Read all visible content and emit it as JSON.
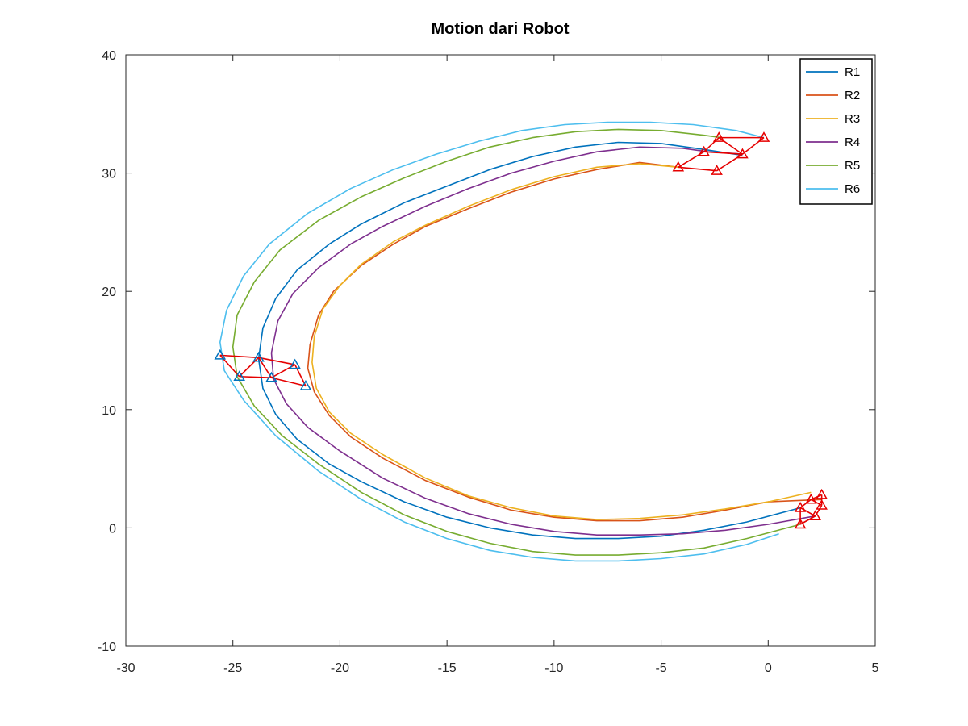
{
  "chart_data": {
    "type": "line",
    "title": "Motion dari Robot",
    "xlabel": "",
    "ylabel": "",
    "xlim": [
      -30,
      5
    ],
    "ylim": [
      -10,
      40
    ],
    "xticks": [
      -30,
      -25,
      -20,
      -15,
      -10,
      -5,
      0,
      5
    ],
    "yticks": [
      -10,
      0,
      10,
      20,
      30,
      40
    ],
    "grid": false,
    "legend_position": "top-right",
    "series": [
      {
        "name": "R1",
        "color": "#0072BD",
        "x": [
          1.5,
          -1,
          -3,
          -5,
          -7,
          -9,
          -11,
          -13,
          -15,
          -17,
          -19,
          -20.5,
          -22,
          -23,
          -23.6,
          -23.8,
          -23.6,
          -23,
          -22,
          -20.5,
          -19,
          -17,
          -15,
          -13,
          -11,
          -9,
          -7,
          -5,
          -3,
          -1.2
        ],
        "y": [
          1.7,
          0.5,
          -0.2,
          -0.7,
          -0.9,
          -0.9,
          -0.6,
          0,
          0.9,
          2.2,
          3.9,
          5.4,
          7.5,
          9.6,
          11.8,
          14.3,
          16.9,
          19.4,
          21.8,
          24,
          25.7,
          27.5,
          28.9,
          30.3,
          31.4,
          32.2,
          32.6,
          32.5,
          32,
          31.5
        ]
      },
      {
        "name": "R2",
        "color": "#D95319",
        "x": [
          2.5,
          0,
          -2,
          -4,
          -6,
          -8,
          -10,
          -12,
          -14,
          -16,
          -18,
          -19.5,
          -20.5,
          -21.2,
          -21.5,
          -21.4,
          -21,
          -20.3,
          -19,
          -17.5,
          -16,
          -14,
          -12,
          -10,
          -8,
          -6,
          -4.2
        ],
        "y": [
          2.4,
          2.2,
          1.5,
          0.9,
          0.6,
          0.6,
          0.9,
          1.5,
          2.6,
          4,
          5.9,
          7.7,
          9.5,
          11.5,
          13.5,
          15.5,
          18,
          20,
          22.2,
          24,
          25.5,
          27,
          28.4,
          29.5,
          30.3,
          30.9,
          30.5
        ]
      },
      {
        "name": "R3",
        "color": "#EDB120",
        "x": [
          2,
          0,
          -2,
          -4,
          -6,
          -8,
          -10,
          -12,
          -14,
          -16,
          -18,
          -19.5,
          -20.5,
          -21.1,
          -21.3,
          -21.2,
          -20.8,
          -20,
          -19,
          -17.5,
          -16,
          -14,
          -12,
          -10,
          -8,
          -6,
          -4.2
        ],
        "y": [
          3,
          2.2,
          1.6,
          1.1,
          0.8,
          0.7,
          1,
          1.7,
          2.7,
          4.2,
          6.2,
          8,
          9.8,
          11.8,
          14,
          16.2,
          18.5,
          20.5,
          22.3,
          24.2,
          25.6,
          27.2,
          28.6,
          29.7,
          30.5,
          30.8,
          30.5
        ]
      },
      {
        "name": "R4",
        "color": "#7E2F8E",
        "x": [
          2.2,
          0,
          -2,
          -4,
          -6,
          -8,
          -10,
          -12,
          -14,
          -16,
          -18,
          -20,
          -21.5,
          -22.5,
          -23.1,
          -23.2,
          -22.9,
          -22.2,
          -21,
          -19.5,
          -18,
          -16,
          -14,
          -12,
          -10,
          -8,
          -6,
          -4,
          -2.8,
          -1.2
        ],
        "y": [
          1,
          0.3,
          -0.2,
          -0.5,
          -0.6,
          -0.6,
          -0.3,
          0.3,
          1.2,
          2.5,
          4.2,
          6.5,
          8.5,
          10.5,
          12.6,
          14.8,
          17.5,
          19.8,
          22,
          24,
          25.5,
          27.2,
          28.7,
          30,
          31,
          31.8,
          32.2,
          32.1,
          31.8,
          31.6
        ]
      },
      {
        "name": "R5",
        "color": "#77AC30",
        "x": [
          1.5,
          -1,
          -3,
          -5,
          -7,
          -9,
          -11,
          -13,
          -15,
          -17,
          -19,
          -21,
          -22.7,
          -24,
          -24.8,
          -25,
          -24.8,
          -24,
          -22.8,
          -21,
          -19,
          -17,
          -15,
          -13,
          -11,
          -9,
          -7,
          -5,
          -3,
          -2.2
        ],
        "y": [
          0.3,
          -0.9,
          -1.7,
          -2.1,
          -2.3,
          -2.3,
          -2,
          -1.3,
          -0.3,
          1.1,
          3,
          5.4,
          7.8,
          10.3,
          12.8,
          15.3,
          18,
          20.8,
          23.5,
          26,
          28,
          29.6,
          31,
          32.2,
          33,
          33.5,
          33.7,
          33.6,
          33.2,
          33
        ]
      },
      {
        "name": "R6",
        "color": "#4DBEEE",
        "x": [
          0.5,
          -1,
          -3,
          -5,
          -7,
          -9,
          -11,
          -13,
          -15,
          -17,
          -19,
          -21,
          -23,
          -24.5,
          -25.4,
          -25.6,
          -25.3,
          -24.5,
          -23.3,
          -21.5,
          -19.5,
          -17.5,
          -15.5,
          -13.5,
          -11.5,
          -9.5,
          -7.5,
          -5.5,
          -3.5,
          -1.5,
          -0.2
        ],
        "y": [
          -0.5,
          -1.4,
          -2.2,
          -2.6,
          -2.8,
          -2.8,
          -2.5,
          -1.9,
          -0.9,
          0.5,
          2.4,
          4.8,
          7.8,
          10.8,
          13.3,
          15.7,
          18.4,
          21.3,
          24,
          26.6,
          28.7,
          30.3,
          31.6,
          32.7,
          33.6,
          34.1,
          34.3,
          34.3,
          34.1,
          33.6,
          33
        ]
      }
    ],
    "markers": [
      {
        "x": -25.6,
        "y": 14.6
      },
      {
        "x": -24.7,
        "y": 12.8
      },
      {
        "x": -23.8,
        "y": 14.4
      },
      {
        "x": -23.2,
        "y": 12.7
      },
      {
        "x": -22.1,
        "y": 13.8
      },
      {
        "x": -21.6,
        "y": 12.0
      },
      {
        "x": -0.2,
        "y": 33.0
      },
      {
        "x": -2.3,
        "y": 33.0
      },
      {
        "x": -3.0,
        "y": 31.8
      },
      {
        "x": -1.2,
        "y": 31.6
      },
      {
        "x": -4.2,
        "y": 30.5
      },
      {
        "x": -2.4,
        "y": 30.2
      },
      {
        "x": 2.5,
        "y": 2.8
      },
      {
        "x": 2.0,
        "y": 2.4
      },
      {
        "x": 2.5,
        "y": 1.9
      },
      {
        "x": 1.5,
        "y": 1.7
      },
      {
        "x": 2.2,
        "y": 1.0
      },
      {
        "x": 1.5,
        "y": 0.3
      }
    ],
    "marker_color": "#E60000",
    "marker_edge_color_start": "#0072BD",
    "formation_links": [
      [
        0,
        2
      ],
      [
        0,
        1
      ],
      [
        1,
        2
      ],
      [
        1,
        3
      ],
      [
        2,
        3
      ],
      [
        2,
        4
      ],
      [
        3,
        4
      ],
      [
        3,
        5
      ],
      [
        4,
        5
      ],
      [
        6,
        7
      ],
      [
        7,
        8
      ],
      [
        7,
        9
      ],
      [
        8,
        9
      ],
      [
        8,
        10
      ],
      [
        9,
        11
      ],
      [
        10,
        11
      ],
      [
        6,
        9
      ],
      [
        12,
        13
      ],
      [
        13,
        14
      ],
      [
        12,
        14
      ],
      [
        13,
        15
      ],
      [
        14,
        16
      ],
      [
        15,
        16
      ],
      [
        16,
        17
      ],
      [
        15,
        17
      ]
    ]
  }
}
